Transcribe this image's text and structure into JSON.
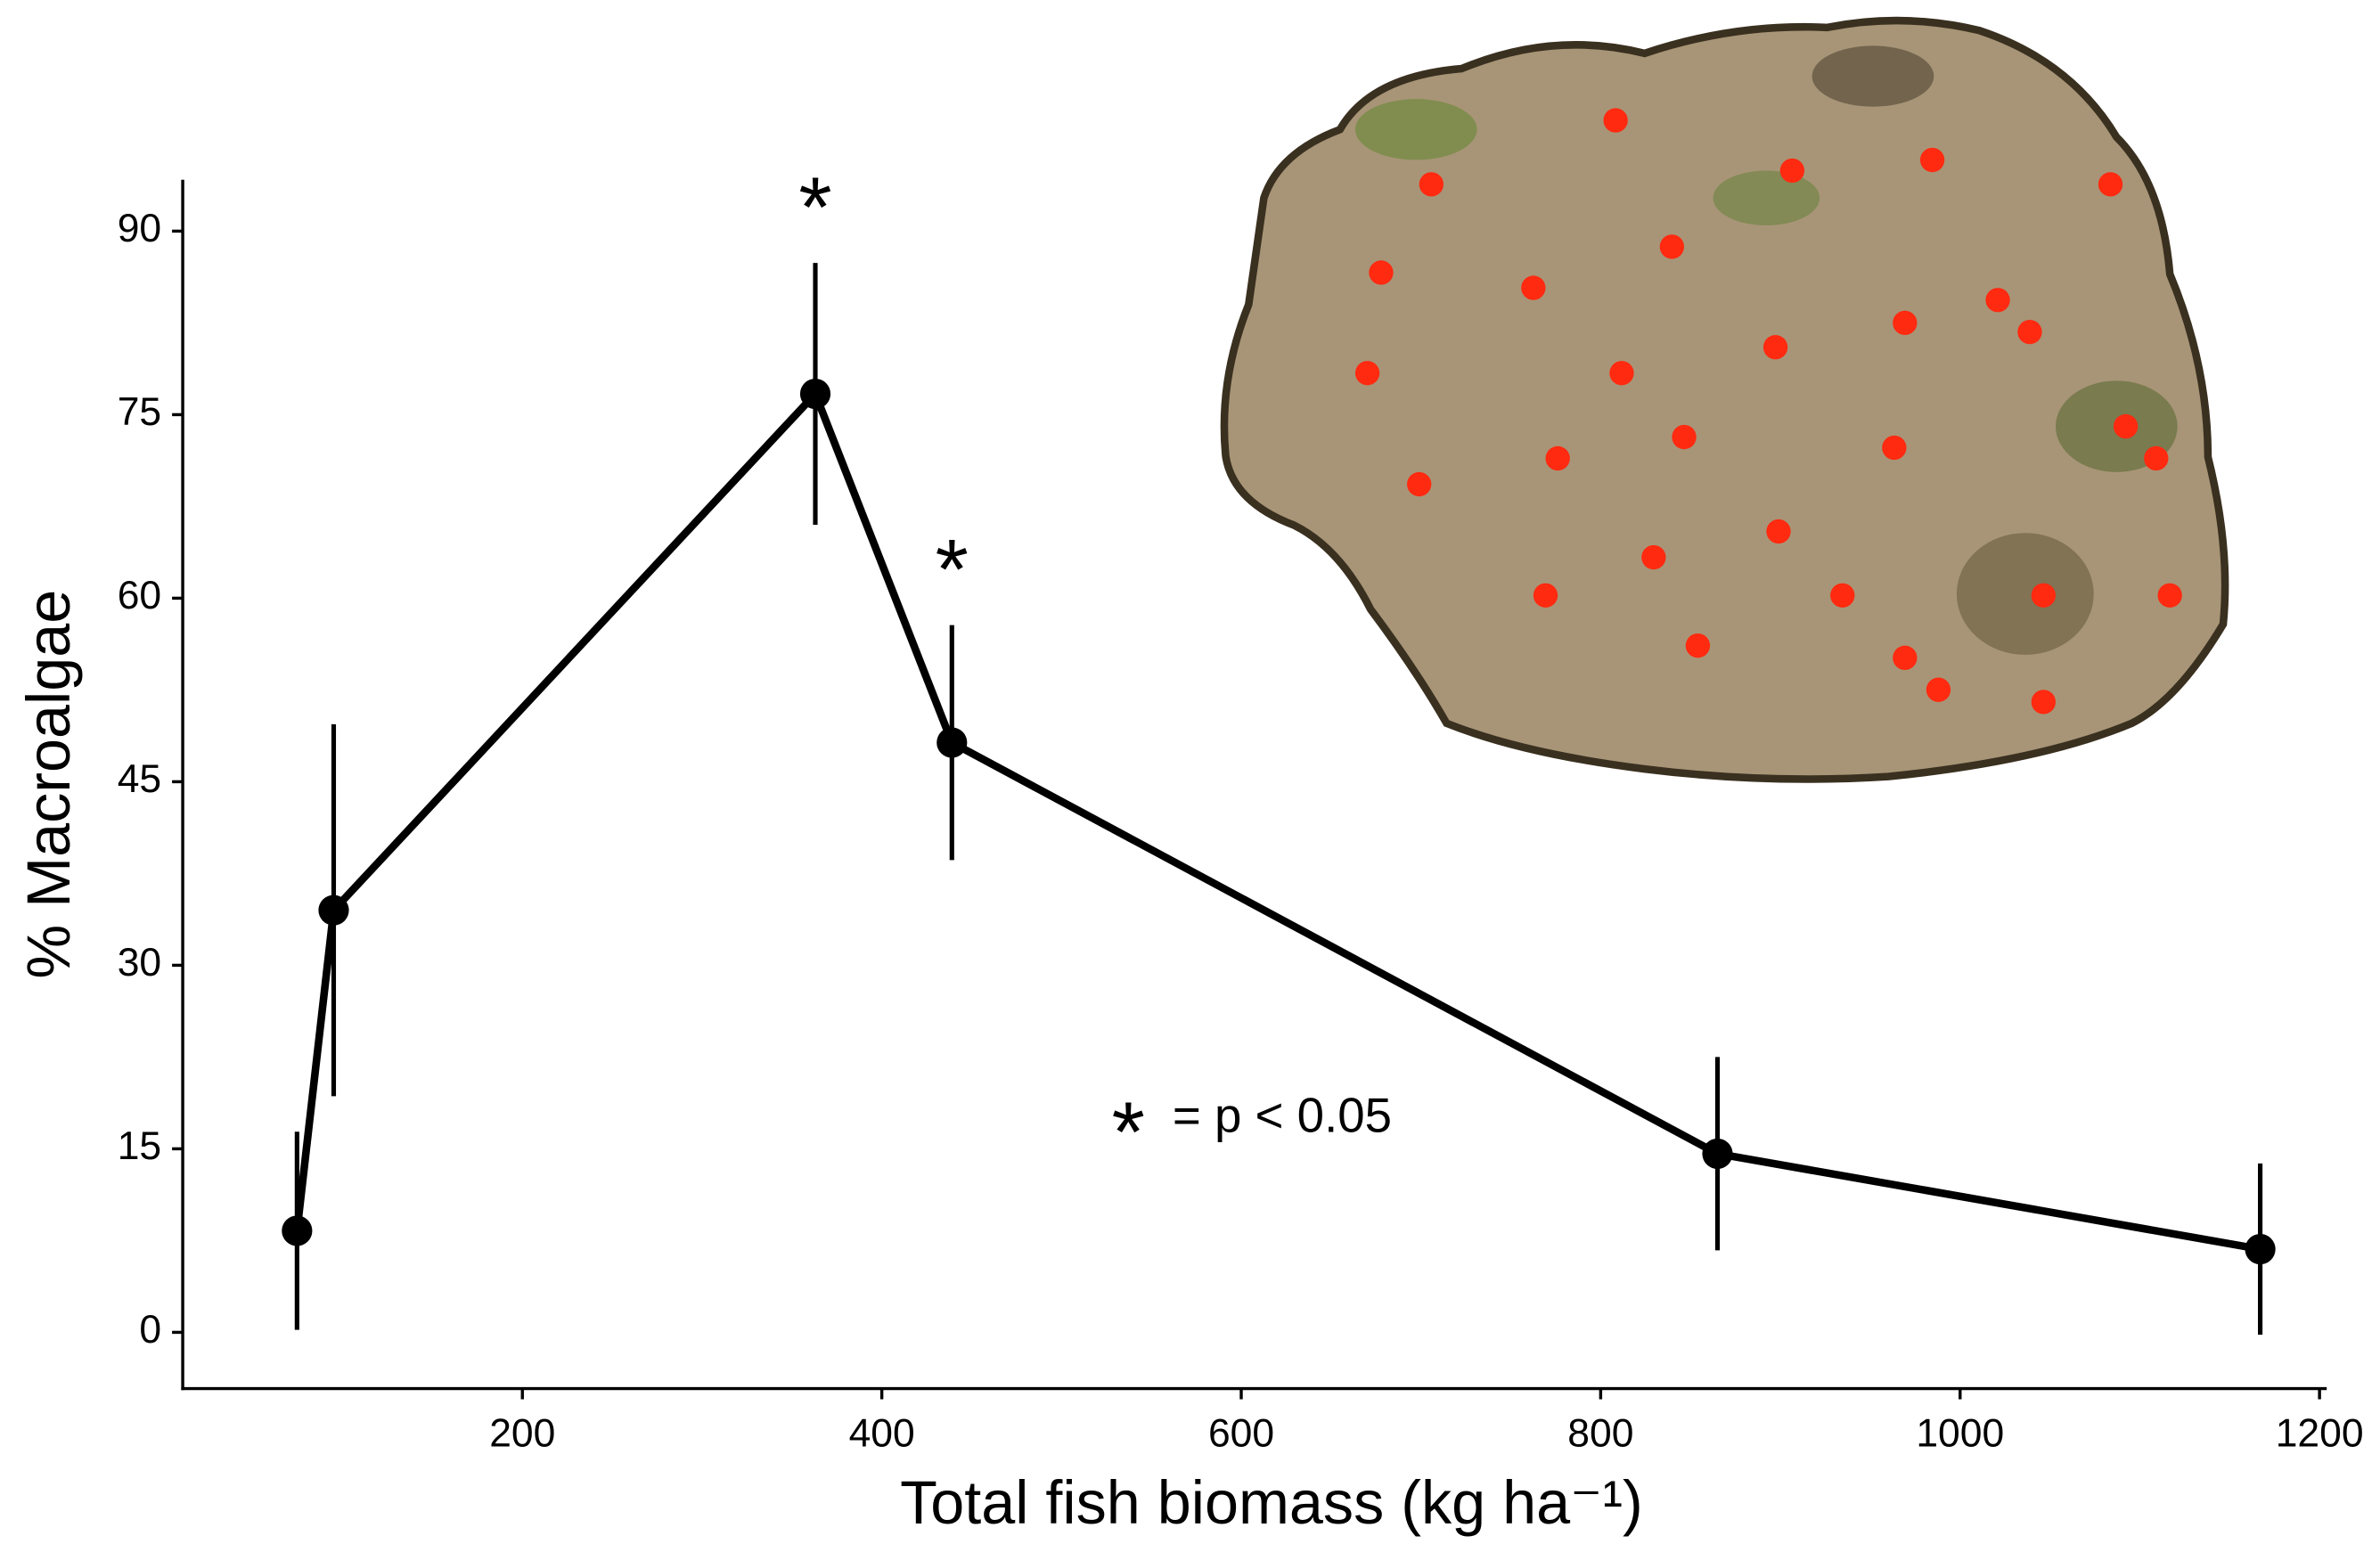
{
  "chart_data": {
    "type": "line",
    "x_label": "Total fish biomass (kg ha⁻¹)",
    "y_label": "% Macroalgae",
    "x": [
      74.6,
      95,
      363,
      439,
      865,
      1167
    ],
    "series": [
      {
        "color": "#000000",
        "values": [
          8.3,
          34.5,
          76.7,
          48.2,
          14.6,
          6.8
        ],
        "errors": [
          8.1,
          15.2,
          10.7,
          9.6,
          7.9,
          7.0
        ]
      }
    ],
    "significant": [
      false,
      false,
      true,
      true,
      false,
      false
    ],
    "significance_marker": "*",
    "significance_label": "= p < 0.05",
    "xlim": [
      11,
      1204
    ],
    "ylim": [
      -4.6,
      94.2
    ],
    "xticks": [
      200,
      400,
      600,
      800,
      1000,
      1200
    ],
    "yticks": [
      0,
      15,
      30,
      45,
      60,
      75,
      90
    ],
    "grid": false
  }
}
